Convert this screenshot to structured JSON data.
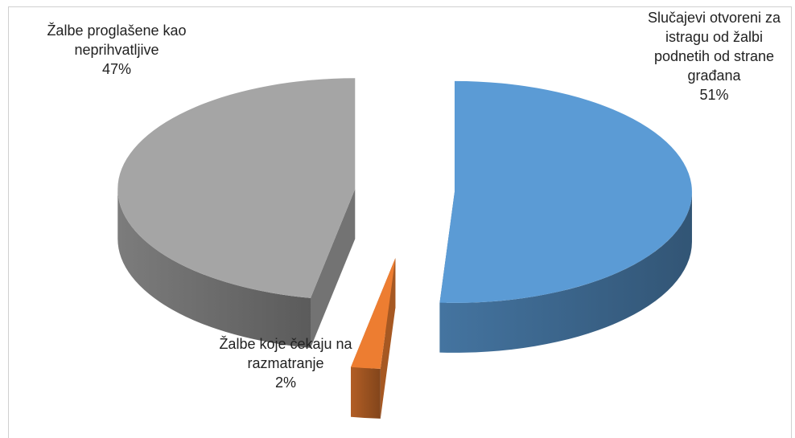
{
  "chart_data": {
    "type": "pie3d",
    "categories": [
      "Slučajevi otvoreni za istragu od žalbi podnetih od strane građana",
      "Žalbe koje čekaju na razmatranje",
      "Žalbe proglašene kao neprihvatljive"
    ],
    "values": [
      51,
      2,
      47
    ],
    "value_labels": [
      "51%",
      "2%",
      "47%"
    ],
    "colors": [
      "#5b9bd5",
      "#ed7d31",
      "#a5a5a5"
    ]
  }
}
